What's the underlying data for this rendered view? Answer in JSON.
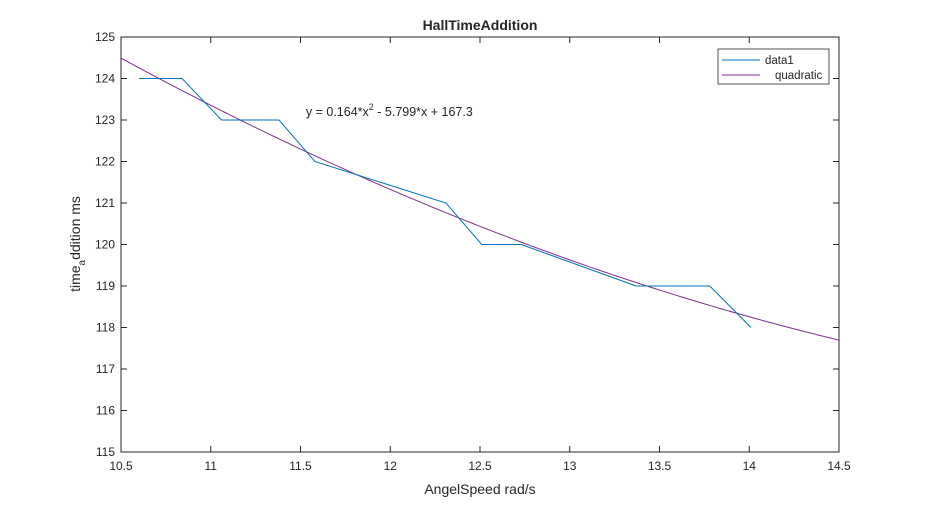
{
  "chart_data": {
    "type": "line",
    "title": "HallTimeAddition",
    "xlabel": "AngelSpeed rad/s",
    "ylabel": {
      "prefix": "time",
      "subscript": "a",
      "suffix": "ddition ms"
    },
    "xlim": [
      10.5,
      14.5
    ],
    "ylim": [
      115,
      125
    ],
    "xticks": [
      10.5,
      11,
      11.5,
      12,
      12.5,
      13,
      13.5,
      14,
      14.5
    ],
    "yticks": [
      115,
      116,
      117,
      118,
      119,
      120,
      121,
      122,
      123,
      124,
      125
    ],
    "grid": false,
    "legend_position": "top-right",
    "annotation": {
      "before": "y = 0.164*x",
      "sup": "2",
      "after": " - 5.799*x + 167.3",
      "x": 11.53,
      "y": 123.1
    },
    "series": [
      {
        "name": "data1",
        "color": "#0072BD",
        "x": [
          10.6,
          10.84,
          11.06,
          11.38,
          11.58,
          12.31,
          12.51,
          12.73,
          13.37,
          13.78,
          14.01
        ],
        "y": [
          124,
          124,
          123,
          123,
          122,
          121,
          120,
          120,
          119,
          119,
          118
        ]
      },
      {
        "name": "quadratic",
        "color": "#7E2F8E",
        "coefficients": [
          0.164,
          -5.799,
          167.3
        ]
      }
    ]
  }
}
